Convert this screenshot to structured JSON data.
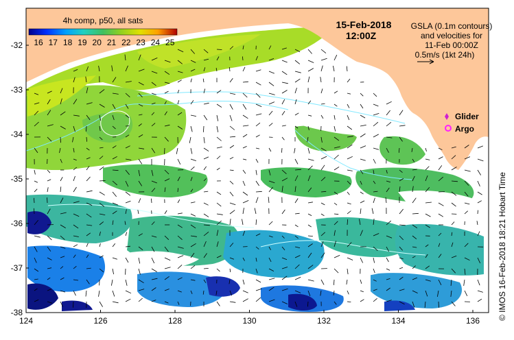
{
  "map": {
    "colorbar_title": "4h comp, p50, all sats",
    "colorbar_ticks": [
      "16",
      "17",
      "18",
      "19",
      "20",
      "21",
      "22",
      "23",
      "24",
      "25"
    ],
    "date": "15-Feb-2018",
    "time": "12:00Z",
    "gsla_lines": [
      "GSLA (0.1m contours)",
      "and velocities for",
      "11-Feb 00:00Z",
      "0.5m/s (1kt 24h)"
    ],
    "legend": [
      {
        "label": "Glider",
        "color": "#d020d0"
      },
      {
        "label": "Argo",
        "color": "#ff20ff"
      }
    ],
    "credit": "© IMOS 16-Feb-2018 18:21 Hobart Time",
    "lat_labels": [
      "-32",
      "-33",
      "-34",
      "-35",
      "-36",
      "-37",
      "-38"
    ],
    "lon_labels": [
      "124",
      "126",
      "128",
      "130",
      "132",
      "134",
      "136"
    ],
    "colors": {
      "land": "#fdc79a",
      "colorbar": [
        "#00008b",
        "#0040ff",
        "#00a0ff",
        "#20d0c0",
        "#40c060",
        "#90d020",
        "#e0e000",
        "#ffa000",
        "#ff4000",
        "#a00000"
      ]
    }
  }
}
